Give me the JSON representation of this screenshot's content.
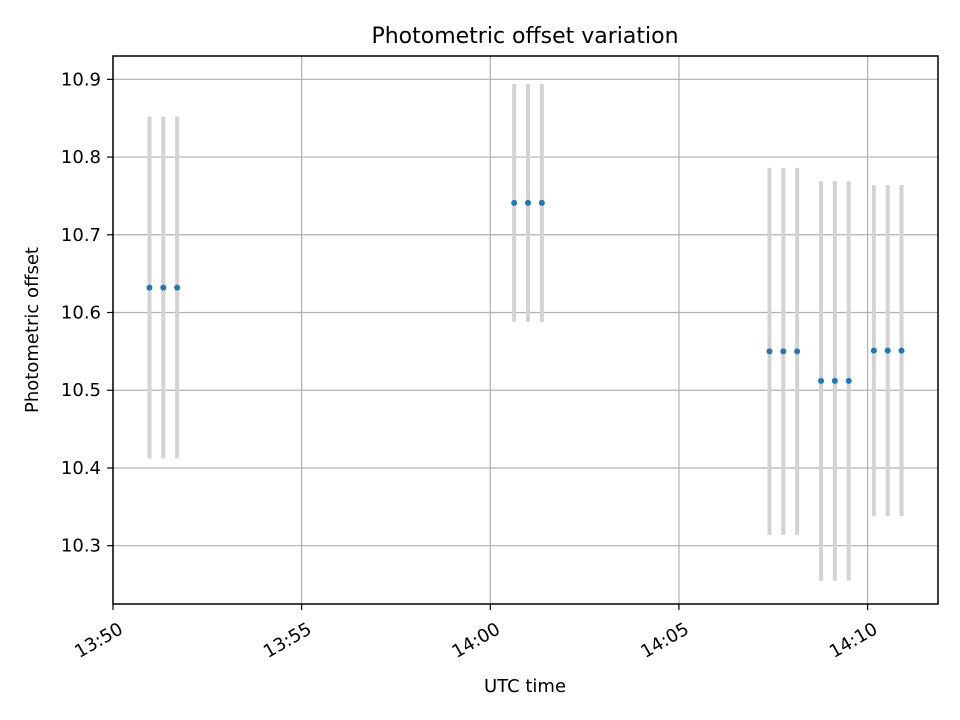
{
  "chart_data": {
    "type": "scatter",
    "title": "Photometric offset variation",
    "xlabel": "UTC time",
    "ylabel": "Photometric offset",
    "x_axis_type": "time",
    "xlim": [
      "13:50:00",
      "14:11:52"
    ],
    "ylim": [
      10.225,
      10.93
    ],
    "grid": true,
    "marker_color": "#1f77b4",
    "errorbar_color": "#d3d3d3",
    "x_ticks": [
      "13:50",
      "13:55",
      "14:00",
      "14:05",
      "14:10"
    ],
    "y_ticks": [
      "10.3",
      "10.4",
      "10.5",
      "10.6",
      "10.7",
      "10.8",
      "10.9"
    ],
    "points": [
      {
        "x": "13:50:58",
        "y": 10.632,
        "yerr": 0.22
      },
      {
        "x": "13:51:20",
        "y": 10.632,
        "yerr": 0.22
      },
      {
        "x": "13:51:42",
        "y": 10.632,
        "yerr": 0.22
      },
      {
        "x": "14:00:38",
        "y": 10.741,
        "yerr": 0.153
      },
      {
        "x": "14:01:00",
        "y": 10.741,
        "yerr": 0.153
      },
      {
        "x": "14:01:22",
        "y": 10.741,
        "yerr": 0.153
      },
      {
        "x": "14:07:24",
        "y": 10.55,
        "yerr": 0.236
      },
      {
        "x": "14:07:46",
        "y": 10.55,
        "yerr": 0.236
      },
      {
        "x": "14:08:08",
        "y": 10.55,
        "yerr": 0.236
      },
      {
        "x": "14:08:46",
        "y": 10.512,
        "yerr": 0.257
      },
      {
        "x": "14:09:08",
        "y": 10.512,
        "yerr": 0.257
      },
      {
        "x": "14:09:30",
        "y": 10.512,
        "yerr": 0.257
      },
      {
        "x": "14:10:10",
        "y": 10.551,
        "yerr": 0.213
      },
      {
        "x": "14:10:32",
        "y": 10.551,
        "yerr": 0.213
      },
      {
        "x": "14:10:54",
        "y": 10.551,
        "yerr": 0.213
      }
    ]
  }
}
